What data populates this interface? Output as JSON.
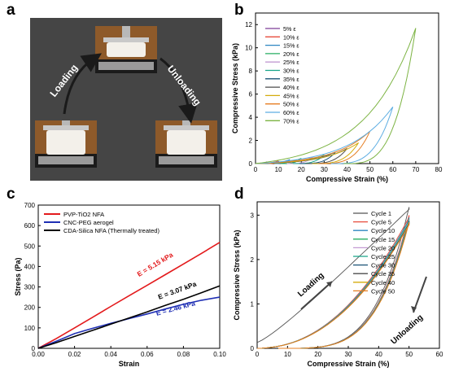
{
  "panels": {
    "a": "a",
    "b": "b",
    "c": "c",
    "d": "d"
  },
  "photo": {
    "loading_label": "Loading",
    "unloading_label": "Unloading"
  },
  "chart_data": [
    {
      "type": "line",
      "panel": "b",
      "xlabel": "Compressive Strain (%)",
      "ylabel": "Compressive Stress (kPa)",
      "xlim": [
        0,
        80
      ],
      "ylim": [
        0,
        13
      ],
      "xticks": [
        0,
        10,
        20,
        30,
        40,
        50,
        60,
        70,
        80
      ],
      "yticks": [
        0,
        2,
        4,
        6,
        8,
        10,
        12
      ],
      "legend": "top-left",
      "series": [
        {
          "name": "5% ε",
          "strain": 5,
          "peak_stress": 0.15,
          "color": "#7d3c98"
        },
        {
          "name": "10% ε",
          "strain": 10,
          "peak_stress": 0.25,
          "color": "#e74c3c"
        },
        {
          "name": "15% ε",
          "strain": 15,
          "peak_stress": 0.35,
          "color": "#2e86c1"
        },
        {
          "name": "20% ε",
          "strain": 20,
          "peak_stress": 0.45,
          "color": "#27ae60"
        },
        {
          "name": "25% ε",
          "strain": 25,
          "peak_stress": 0.55,
          "color": "#c39bd3"
        },
        {
          "name": "30% ε",
          "strain": 30,
          "peak_stress": 0.75,
          "color": "#17a589"
        },
        {
          "name": "35% ε",
          "strain": 35,
          "peak_stress": 1.0,
          "color": "#1a5276"
        },
        {
          "name": "40% ε",
          "strain": 40,
          "peak_stress": 1.3,
          "color": "#4d4d4d"
        },
        {
          "name": "45% ε",
          "strain": 45,
          "peak_stress": 1.8,
          "color": "#d4ac0d"
        },
        {
          "name": "50% ε",
          "strain": 50,
          "peak_stress": 2.8,
          "color": "#e67e22"
        },
        {
          "name": "60% ε",
          "strain": 60,
          "peak_stress": 4.9,
          "color": "#5dade2"
        },
        {
          "name": "70% ε",
          "strain": 70,
          "peak_stress": 11.7,
          "color": "#7cb342"
        }
      ]
    },
    {
      "type": "line",
      "panel": "c",
      "xlabel": "Strain",
      "ylabel": "Stress (Pa)",
      "xlim": [
        0,
        0.1
      ],
      "ylim": [
        0,
        700
      ],
      "xticks": [
        0,
        0.02,
        0.04,
        0.06,
        0.08,
        0.1
      ],
      "xtick_labels": [
        "0.00",
        "0.02",
        "0.04",
        "0.06",
        "0.08",
        "0.10"
      ],
      "yticks": [
        0,
        100,
        200,
        300,
        400,
        500,
        600,
        700
      ],
      "legend": "top-left",
      "series": [
        {
          "name": "PVP-TiO2 NFA",
          "color": "#e31a1c",
          "x": [
            0,
            0.01,
            0.02,
            0.03,
            0.04,
            0.05,
            0.06,
            0.07,
            0.08,
            0.09,
            0.1
          ],
          "y": [
            0,
            48,
            100,
            152,
            205,
            257,
            308,
            360,
            412,
            464,
            518
          ],
          "annotation": "E = 5.15 kPa"
        },
        {
          "name": "CNC-PEG aerogel",
          "color": "#1f2fb4",
          "x": [
            0,
            0.01,
            0.02,
            0.03,
            0.04,
            0.05,
            0.06,
            0.07,
            0.08,
            0.09,
            0.1
          ],
          "y": [
            0,
            35,
            72,
            98,
            122,
            145,
            168,
            192,
            215,
            235,
            250
          ],
          "annotation": "E = 2.46 kPa"
        },
        {
          "name": "CDA-Silica NFA (Thermally treated)",
          "color": "#000000",
          "x": [
            0,
            0.01,
            0.02,
            0.03,
            0.04,
            0.05,
            0.06,
            0.07,
            0.08,
            0.09,
            0.1
          ],
          "y": [
            0,
            28,
            58,
            88,
            118,
            148,
            178,
            210,
            240,
            272,
            305
          ],
          "annotation": "E = 3.07 kPa"
        }
      ]
    },
    {
      "type": "line",
      "panel": "d",
      "xlabel": "Compressive Strain (%)",
      "ylabel": "Compressive Stress (kPa)",
      "xlim": [
        0,
        60
      ],
      "ylim": [
        0,
        3.3
      ],
      "xticks": [
        0,
        10,
        20,
        30,
        40,
        50,
        60
      ],
      "yticks": [
        0,
        1,
        2,
        3
      ],
      "legend": "top-right",
      "annotations": [
        "Loading",
        "Unloading"
      ],
      "series": [
        {
          "name": "Cycle 1",
          "peak_stress": 3.18,
          "color": "#555555"
        },
        {
          "name": "Cycle 5",
          "peak_stress": 3.0,
          "color": "#e74c3c"
        },
        {
          "name": "Cycle 10",
          "peak_stress": 2.95,
          "color": "#2e86c1"
        },
        {
          "name": "Cycle 15",
          "peak_stress": 2.92,
          "color": "#27ae60"
        },
        {
          "name": "Cycle 20",
          "peak_stress": 2.9,
          "color": "#c39bd3"
        },
        {
          "name": "Cycle 25",
          "peak_stress": 2.88,
          "color": "#17a589"
        },
        {
          "name": "Cycle 30",
          "peak_stress": 2.86,
          "color": "#1a5276"
        },
        {
          "name": "Cycle 35",
          "peak_stress": 2.85,
          "color": "#4d4d4d"
        },
        {
          "name": "Cycle 40",
          "peak_stress": 2.84,
          "color": "#d4ac0d"
        },
        {
          "name": "Cycle 50",
          "peak_stress": 2.83,
          "color": "#e67e22"
        }
      ]
    }
  ]
}
